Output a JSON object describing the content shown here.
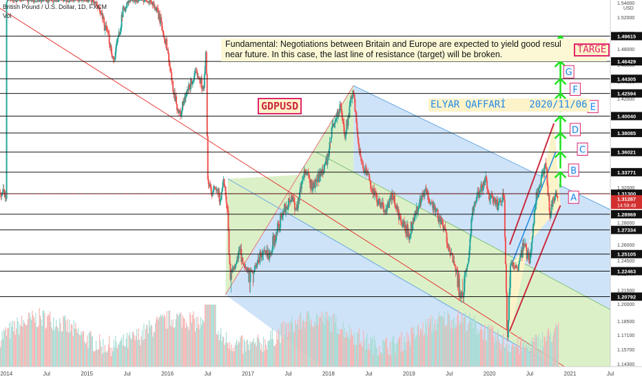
{
  "header": {
    "symbol_line": "British Pound / U.S. Dollar, 1D, FXCM",
    "volume_label": "Vol"
  },
  "note_text": [
    "Fundamental: Negotiations between Britain and Europe are expected to yield good resul",
    "near future. In this case, the last line of resistance (target) will be broken."
  ],
  "symbol_box": "GDPUSD",
  "author_box": "ELYAR QAFFARİ    2020/11/06",
  "target_box": "TARGE",
  "axis_unit": "USD",
  "colors": {
    "up": "#26a69a",
    "down": "#ef5350",
    "accent_red": "#cc2a3f",
    "label_box_border": "#e0246c",
    "label_blue": "#1e88e5",
    "arrow_green": "#1de21d",
    "channel_blue": "#cfe3f8",
    "channel_green": "#dcf0c8",
    "hline": "#111111",
    "price_tag": "#d32f2f"
  },
  "chart_data": {
    "type": "candlestick",
    "title": "",
    "x_ticks": [
      "2014",
      "Jul",
      "2015",
      "Jul",
      "2016",
      "Jul",
      "2017",
      "Jul",
      "2018",
      "Jul",
      "2019",
      "Jul",
      "2020",
      "Jul",
      "2021",
      "Jul"
    ],
    "x_tick_times": [
      2014.0,
      2014.5,
      2015.0,
      2015.5,
      2016.0,
      2016.5,
      2017.0,
      2017.5,
      2018.0,
      2018.5,
      2019.0,
      2019.5,
      2020.0,
      2020.5,
      2021.0,
      2021.5
    ],
    "xlim": [
      2013.92,
      2021.5
    ],
    "ylim": [
      1.1385,
      1.548
    ],
    "y_ticks": [
      1.54,
      1.52,
      1.5,
      1.48,
      1.46,
      1.44,
      1.42,
      1.4,
      1.38,
      1.36,
      1.34,
      1.32,
      1.3,
      1.28,
      1.26,
      1.245,
      1.22,
      1.215,
      1.2,
      1.185,
      1.171,
      1.157,
      1.143
    ],
    "y_tick_labels": [
      "1.54000",
      "1.52000",
      "1.50000",
      "1.48000",
      "1.46000",
      "1.44000",
      "1.42000",
      "1.40000",
      "1.38000",
      "1.36000",
      "1.34000",
      "1.32000",
      "1.30000",
      "1.28000",
      "1.26000",
      "1.24500",
      "1.22000",
      "1.21500",
      "1.20000",
      "1.18500",
      "1.17100",
      "1.15700",
      "1.14300"
    ],
    "horizontal_levels": [
      1.49615,
      1.46429,
      1.44305,
      1.42594,
      1.4004,
      1.38085,
      1.36021,
      1.33771,
      1.313,
      1.28969,
      1.27334,
      1.25105,
      1.22463,
      1.20792
    ],
    "price_labels": [
      "1.49615",
      "1.46429",
      "1.44305",
      "1.42594",
      "1.40040",
      "1.38085",
      "1.36021",
      "1.33771",
      "1.31300",
      "1.28969",
      "1.27334",
      "1.25105",
      "1.22463",
      "1.20792"
    ],
    "current_price": 1.31287,
    "current_price_label": "1.31287",
    "countdown_label": "14:59:49",
    "price_path": [
      [
        2014.0,
        1.548
      ],
      [
        2014.2,
        1.548
      ],
      [
        2014.3,
        1.548
      ],
      [
        2014.45,
        1.548
      ],
      [
        2014.6,
        1.548
      ],
      [
        2014.75,
        1.548
      ],
      [
        2014.9,
        1.548
      ],
      [
        2015.05,
        1.548
      ],
      [
        2015.15,
        1.53
      ],
      [
        2015.2,
        1.515
      ],
      [
        2015.28,
        1.49
      ],
      [
        2015.33,
        1.465
      ],
      [
        2015.4,
        1.5
      ],
      [
        2015.45,
        1.53
      ],
      [
        2015.55,
        1.548
      ],
      [
        2015.65,
        1.548
      ],
      [
        2015.75,
        1.548
      ],
      [
        2015.82,
        1.54
      ],
      [
        2015.9,
        1.52
      ],
      [
        2016.0,
        1.48
      ],
      [
        2016.05,
        1.44
      ],
      [
        2016.1,
        1.42
      ],
      [
        2016.15,
        1.4
      ],
      [
        2016.2,
        1.415
      ],
      [
        2016.3,
        1.44
      ],
      [
        2016.38,
        1.45
      ],
      [
        2016.45,
        1.43
      ],
      [
        2016.48,
        1.48
      ],
      [
        2016.5,
        1.33
      ],
      [
        2016.55,
        1.31
      ],
      [
        2016.6,
        1.32
      ],
      [
        2016.65,
        1.305
      ],
      [
        2016.7,
        1.33
      ],
      [
        2016.75,
        1.29
      ],
      [
        2016.78,
        1.22
      ],
      [
        2016.85,
        1.24
      ],
      [
        2016.9,
        1.255
      ],
      [
        2016.95,
        1.23
      ],
      [
        2017.05,
        1.22
      ],
      [
        2017.15,
        1.25
      ],
      [
        2017.25,
        1.25
      ],
      [
        2017.35,
        1.27
      ],
      [
        2017.45,
        1.295
      ],
      [
        2017.55,
        1.31
      ],
      [
        2017.6,
        1.295
      ],
      [
        2017.7,
        1.34
      ],
      [
        2017.8,
        1.32
      ],
      [
        2017.9,
        1.335
      ],
      [
        2018.0,
        1.355
      ],
      [
        2018.05,
        1.39
      ],
      [
        2018.15,
        1.41
      ],
      [
        2018.2,
        1.38
      ],
      [
        2018.25,
        1.4
      ],
      [
        2018.3,
        1.43
      ],
      [
        2018.35,
        1.39
      ],
      [
        2018.4,
        1.35
      ],
      [
        2018.5,
        1.33
      ],
      [
        2018.6,
        1.305
      ],
      [
        2018.7,
        1.295
      ],
      [
        2018.8,
        1.31
      ],
      [
        2018.9,
        1.28
      ],
      [
        2019.0,
        1.27
      ],
      [
        2019.1,
        1.295
      ],
      [
        2019.2,
        1.315
      ],
      [
        2019.3,
        1.3
      ],
      [
        2019.4,
        1.28
      ],
      [
        2019.5,
        1.26
      ],
      [
        2019.6,
        1.22
      ],
      [
        2019.65,
        1.205
      ],
      [
        2019.72,
        1.23
      ],
      [
        2019.78,
        1.29
      ],
      [
        2019.85,
        1.31
      ],
      [
        2019.95,
        1.33
      ],
      [
        2020.0,
        1.31
      ],
      [
        2020.1,
        1.3
      ],
      [
        2020.18,
        1.31
      ],
      [
        2020.22,
        1.16
      ],
      [
        2020.26,
        1.24
      ],
      [
        2020.35,
        1.23
      ],
      [
        2020.42,
        1.26
      ],
      [
        2020.5,
        1.245
      ],
      [
        2020.58,
        1.31
      ],
      [
        2020.65,
        1.33
      ],
      [
        2020.7,
        1.345
      ],
      [
        2020.75,
        1.29
      ],
      [
        2020.8,
        1.31
      ],
      [
        2020.85,
        1.313
      ]
    ]
  },
  "wave_labels": [
    "A",
    "B",
    "C",
    "D",
    "E",
    "F",
    "G"
  ]
}
